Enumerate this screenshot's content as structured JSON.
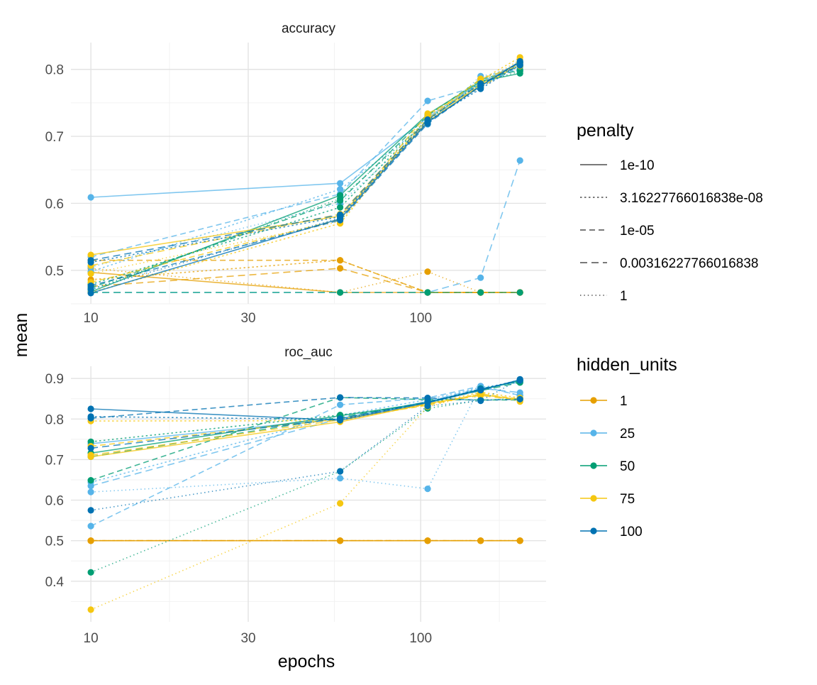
{
  "chart_data": {
    "type": "line",
    "xlabel": "epochs",
    "ylabel": "mean",
    "x_scale": "log10",
    "xlim": [
      8.7,
      240
    ],
    "x_ticks": [
      10,
      30,
      100
    ],
    "x_tick_labels": [
      "10",
      "30",
      "100"
    ],
    "x_values": [
      10,
      57,
      105,
      152,
      200
    ],
    "legend": {
      "position": "right",
      "penalty": {
        "title": "penalty",
        "entries": [
          {
            "label": "1e-10",
            "dash": "solid"
          },
          {
            "label": "3.16227766016838e-08",
            "dash": "dotdash-short"
          },
          {
            "label": "1e-05",
            "dash": "dashed-medium"
          },
          {
            "label": "0.00316227766016838",
            "dash": "dashed-long"
          },
          {
            "label": "1",
            "dash": "dotted"
          }
        ]
      },
      "hidden_units": {
        "title": "hidden_units",
        "entries": [
          {
            "label": "1",
            "color": "#E69F00"
          },
          {
            "label": "25",
            "color": "#56B4E9"
          },
          {
            "label": "50",
            "color": "#009E73"
          },
          {
            "label": "75",
            "color": "#F5C710"
          },
          {
            "label": "100",
            "color": "#0072B2"
          }
        ]
      }
    },
    "panels": [
      {
        "strip": "accuracy",
        "ylim": [
          0.45,
          0.84
        ],
        "y_ticks": [
          0.5,
          0.6,
          0.7,
          0.8
        ],
        "y_tick_labels": [
          "0.5",
          "0.6",
          "0.7",
          "0.8"
        ],
        "series": [
          {
            "hidden_units": "1",
            "penalty": "1e-10",
            "values": [
              0.497,
              0.467,
              0.467,
              0.467,
              0.467
            ]
          },
          {
            "hidden_units": "1",
            "penalty": "3.16227766016838e-08",
            "values": [
              0.486,
              0.515,
              0.467,
              0.467,
              0.467
            ]
          },
          {
            "hidden_units": "1",
            "penalty": "1e-05",
            "values": [
              0.515,
              0.515,
              0.467,
              0.467,
              0.467
            ]
          },
          {
            "hidden_units": "1",
            "penalty": "0.00316227766016838",
            "values": [
              0.476,
              0.503,
              0.467,
              0.467,
              0.467
            ]
          },
          {
            "hidden_units": "1",
            "penalty": "1",
            "values": [
              0.503,
              0.467,
              0.498,
              0.467,
              0.467
            ]
          },
          {
            "hidden_units": "25",
            "penalty": "1e-10",
            "values": [
              0.609,
              0.63,
              0.728,
              0.781,
              0.81
            ]
          },
          {
            "hidden_units": "25",
            "penalty": "3.16227766016838e-08",
            "values": [
              0.498,
              0.621,
              0.72,
              0.786,
              0.808
            ]
          },
          {
            "hidden_units": "25",
            "penalty": "1e-05",
            "values": [
              0.52,
              0.614,
              0.753,
              0.776,
              0.803
            ]
          },
          {
            "hidden_units": "25",
            "penalty": "0.00316227766016838",
            "values": [
              0.467,
              0.467,
              0.467,
              0.489,
              0.664
            ]
          },
          {
            "hidden_units": "25",
            "penalty": "1",
            "values": [
              0.505,
              0.6,
              0.718,
              0.79,
              0.799
            ]
          },
          {
            "hidden_units": "50",
            "penalty": "1e-10",
            "values": [
              0.468,
              0.612,
              0.733,
              0.782,
              0.794
            ]
          },
          {
            "hidden_units": "50",
            "penalty": "3.16227766016838e-08",
            "values": [
              0.479,
              0.594,
              0.726,
              0.778,
              0.805
            ]
          },
          {
            "hidden_units": "50",
            "penalty": "1e-05",
            "values": [
              0.474,
              0.604,
              0.731,
              0.785,
              0.799
            ]
          },
          {
            "hidden_units": "50",
            "penalty": "0.00316227766016838",
            "values": [
              0.467,
              0.467,
              0.467,
              0.467,
              0.467
            ]
          },
          {
            "hidden_units": "50",
            "penalty": "1",
            "values": [
              0.471,
              0.607,
              0.724,
              0.781,
              0.797
            ]
          },
          {
            "hidden_units": "75",
            "penalty": "1e-10",
            "values": [
              0.523,
              0.581,
              0.722,
              0.777,
              0.811
            ]
          },
          {
            "hidden_units": "75",
            "penalty": "3.16227766016838e-08",
            "values": [
              0.467,
              0.57,
              0.73,
              0.784,
              0.818
            ]
          },
          {
            "hidden_units": "75",
            "penalty": "1e-05",
            "values": [
              0.482,
              0.576,
              0.734,
              0.773,
              0.809
            ]
          },
          {
            "hidden_units": "75",
            "penalty": "0.00316227766016838",
            "values": [
              0.507,
              0.584,
              0.725,
              0.786,
              0.805
            ]
          },
          {
            "hidden_units": "75",
            "penalty": "1",
            "values": [
              0.495,
              0.573,
              0.727,
              0.78,
              0.814
            ]
          },
          {
            "hidden_units": "100",
            "penalty": "1e-10",
            "values": [
              0.466,
              0.577,
              0.721,
              0.775,
              0.812
            ]
          },
          {
            "hidden_units": "100",
            "penalty": "3.16227766016838e-08",
            "values": [
              0.512,
              0.58,
              0.723,
              0.771,
              0.807
            ]
          },
          {
            "hidden_units": "100",
            "penalty": "1e-05",
            "values": [
              0.477,
              0.575,
              0.719,
              0.776,
              0.811
            ]
          },
          {
            "hidden_units": "100",
            "penalty": "0.00316227766016838",
            "values": [
              0.515,
              0.583,
              0.725,
              0.779,
              0.806
            ]
          },
          {
            "hidden_units": "100",
            "penalty": "1",
            "values": [
              0.472,
              0.578,
              0.722,
              0.773,
              0.81
            ]
          }
        ]
      },
      {
        "strip": "roc_auc",
        "ylim": [
          0.3,
          0.93
        ],
        "y_ticks": [
          0.4,
          0.5,
          0.6,
          0.7,
          0.8,
          0.9
        ],
        "y_tick_labels": [
          "0.4",
          "0.5",
          "0.6",
          "0.7",
          "0.8",
          "0.9"
        ],
        "series": [
          {
            "hidden_units": "1",
            "penalty": "1e-10",
            "values": [
              0.5,
              0.5,
              0.5,
              0.5,
              0.5
            ]
          },
          {
            "hidden_units": "1",
            "penalty": "3.16227766016838e-08",
            "values": [
              0.5,
              0.5,
              0.5,
              0.5,
              0.5
            ]
          },
          {
            "hidden_units": "1",
            "penalty": "1e-05",
            "values": [
              0.5,
              0.5,
              0.5,
              0.5,
              0.5
            ]
          },
          {
            "hidden_units": "1",
            "penalty": "0.00316227766016838",
            "values": [
              0.5,
              0.5,
              0.5,
              0.5,
              0.5
            ]
          },
          {
            "hidden_units": "1",
            "penalty": "1",
            "values": [
              0.5,
              0.5,
              0.5,
              0.5,
              0.5
            ]
          },
          {
            "hidden_units": "25",
            "penalty": "1e-10",
            "values": [
              0.739,
              0.801,
              0.843,
              0.873,
              0.893
            ]
          },
          {
            "hidden_units": "25",
            "penalty": "3.16227766016838e-08",
            "values": [
              0.644,
              0.809,
              0.848,
              0.878,
              0.89
            ]
          },
          {
            "hidden_units": "25",
            "penalty": "1e-05",
            "values": [
              0.536,
              0.835,
              0.852,
              0.881,
              0.858
            ]
          },
          {
            "hidden_units": "25",
            "penalty": "0.00316227766016838",
            "values": [
              0.635,
              0.801,
              0.843,
              0.876,
              0.865
            ]
          },
          {
            "hidden_units": "25",
            "penalty": "1",
            "values": [
              0.62,
              0.654,
              0.628,
              0.881,
              0.858
            ]
          },
          {
            "hidden_units": "50",
            "penalty": "1e-10",
            "values": [
              0.716,
              0.808,
              0.84,
              0.872,
              0.895
            ]
          },
          {
            "hidden_units": "50",
            "penalty": "3.16227766016838e-08",
            "values": [
              0.744,
              0.81,
              0.835,
              0.875,
              0.892
            ]
          },
          {
            "hidden_units": "50",
            "penalty": "1e-05",
            "values": [
              0.649,
              0.853,
              0.848,
              0.847,
              0.847
            ]
          },
          {
            "hidden_units": "50",
            "penalty": "0.00316227766016838",
            "values": [
              0.707,
              0.804,
              0.842,
              0.87,
              0.89
            ]
          },
          {
            "hidden_units": "50",
            "penalty": "1",
            "values": [
              0.422,
              0.671,
              0.826,
              0.846,
              0.851
            ]
          },
          {
            "hidden_units": "75",
            "penalty": "1e-10",
            "values": [
              0.707,
              0.793,
              0.838,
              0.86,
              0.848
            ]
          },
          {
            "hidden_units": "75",
            "penalty": "3.16227766016838e-08",
            "values": [
              0.795,
              0.796,
              0.836,
              0.866,
              0.852
            ]
          },
          {
            "hidden_units": "75",
            "penalty": "1e-05",
            "values": [
              0.733,
              0.8,
              0.834,
              0.862,
              0.849
            ]
          },
          {
            "hidden_units": "75",
            "penalty": "0.00316227766016838",
            "values": [
              0.711,
              0.798,
              0.837,
              0.858,
              0.846
            ]
          },
          {
            "hidden_units": "75",
            "penalty": "1",
            "values": [
              0.33,
              0.592,
              0.83,
              0.864,
              0.843
            ]
          },
          {
            "hidden_units": "100",
            "penalty": "1e-10",
            "values": [
              0.825,
              0.797,
              0.84,
              0.871,
              0.897
            ]
          },
          {
            "hidden_units": "100",
            "penalty": "3.16227766016838e-08",
            "values": [
              0.806,
              0.799,
              0.842,
              0.874,
              0.896
            ]
          },
          {
            "hidden_units": "100",
            "penalty": "1e-05",
            "values": [
              0.802,
              0.853,
              0.852,
              0.846,
              0.849
            ]
          },
          {
            "hidden_units": "100",
            "penalty": "0.00316227766016838",
            "values": [
              0.728,
              0.801,
              0.841,
              0.873,
              0.895
            ]
          },
          {
            "hidden_units": "100",
            "penalty": "1",
            "values": [
              0.575,
              0.671,
              0.832,
              0.845,
              0.898
            ]
          }
        ]
      }
    ]
  }
}
